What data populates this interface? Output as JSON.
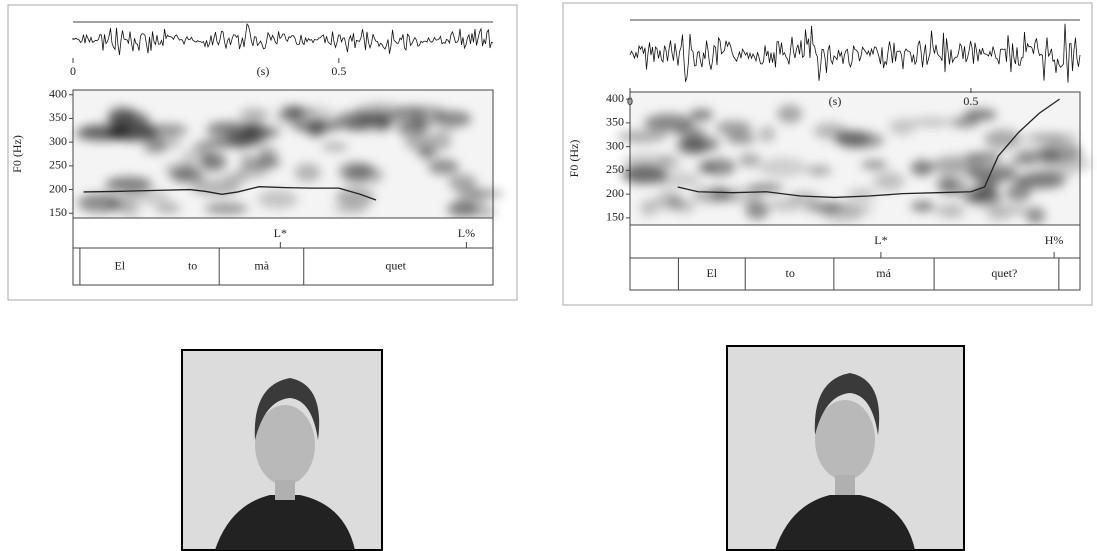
{
  "chart_data": [
    {
      "type": "line",
      "ylabel": "F0 (Hz)",
      "xlabel": "(s)",
      "xlim": [
        0,
        0.79
      ],
      "xticks": [
        0,
        0.5
      ],
      "ylim": [
        140,
        410
      ],
      "yticks": [
        150,
        200,
        250,
        300,
        350,
        400
      ],
      "x": [
        0.02,
        0.08,
        0.15,
        0.22,
        0.25,
        0.28,
        0.31,
        0.35,
        0.4,
        0.45,
        0.5,
        0.54,
        0.57
      ],
      "values": [
        195,
        196,
        198,
        200,
        196,
        190,
        195,
        206,
        204,
        203,
        203,
        190,
        178
      ],
      "color": "#222222",
      "tones": [
        {
          "label": "L*",
          "x": 0.39
        },
        {
          "label": "L%",
          "x": 0.74
        }
      ],
      "boundaries": [
        0.013,
        0.275,
        0.434,
        0.79
      ],
      "words": [
        {
          "label": "El",
          "x": 0.088
        },
        {
          "label": "to",
          "x": 0.225
        },
        {
          "label": "mà",
          "x": 0.355
        },
        {
          "label": "quet",
          "x": 0.607
        }
      ]
    },
    {
      "type": "line",
      "ylabel": "F0 (Hz)",
      "xlabel": "(s)",
      "xlim": [
        0,
        0.66
      ],
      "xticks": [
        0,
        0.5
      ],
      "ylim": [
        135,
        415
      ],
      "yticks": [
        150,
        200,
        250,
        300,
        350,
        400
      ],
      "x": [
        0.07,
        0.1,
        0.15,
        0.2,
        0.25,
        0.3,
        0.35,
        0.4,
        0.45,
        0.5,
        0.52,
        0.54,
        0.57,
        0.6,
        0.63
      ],
      "values": [
        215,
        205,
        203,
        205,
        196,
        193,
        196,
        201,
        203,
        205,
        215,
        280,
        330,
        370,
        400
      ],
      "color": "#222222",
      "tones": [
        {
          "label": "L*",
          "x": 0.368
        },
        {
          "label": "H%",
          "x": 0.622
        }
      ],
      "boundaries": [
        0.071,
        0.169,
        0.299,
        0.446,
        0.629
      ],
      "words": [
        {
          "label": "El",
          "x": 0.12
        },
        {
          "label": "to",
          "x": 0.235
        },
        {
          "label": "má",
          "x": 0.372
        },
        {
          "label": "quet?",
          "x": 0.549
        }
      ]
    }
  ]
}
